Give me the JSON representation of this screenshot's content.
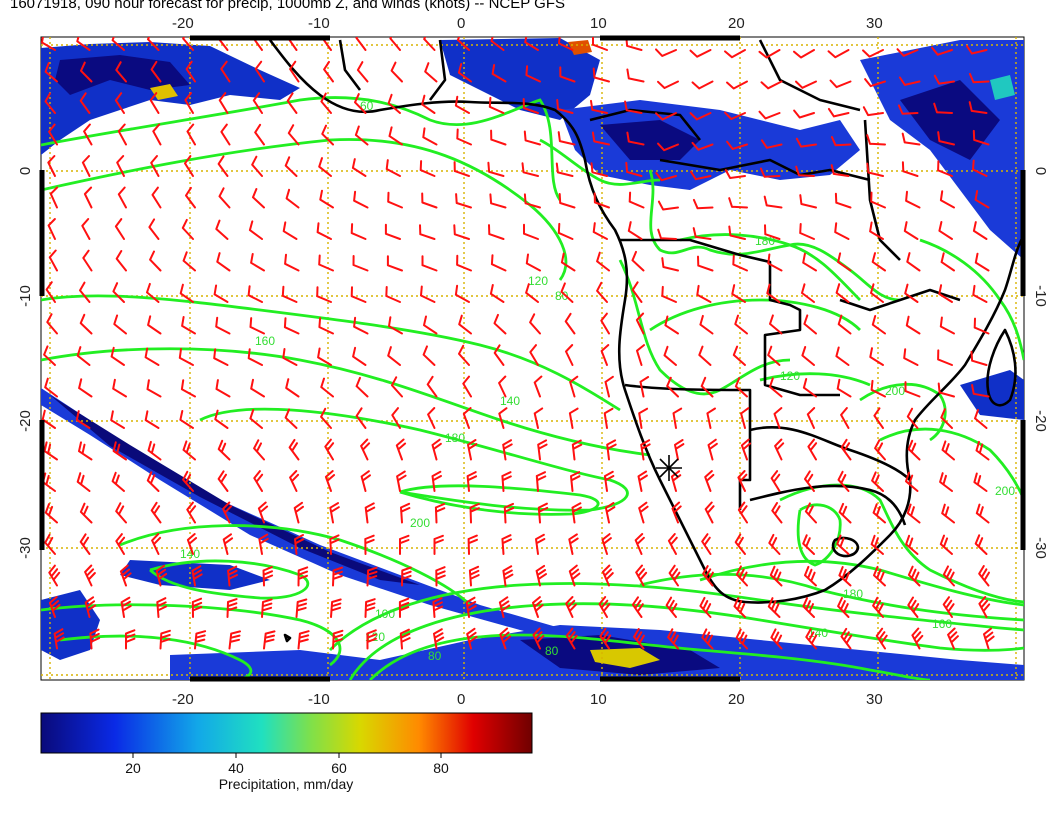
{
  "title": "16071918, 090 hour forecast for precip, 1000mb Z, and winds (knots) -- NCEP GFS",
  "map": {
    "lon_ticks": [
      "-20",
      "-10",
      "0",
      "10",
      "20",
      "30"
    ],
    "lat_ticks": [
      "0",
      "-10",
      "-20",
      "-30"
    ],
    "lon_range": [
      -32,
      39
    ],
    "lat_range": [
      -41,
      10
    ],
    "grid": "dotted",
    "colors": {
      "contour": "#22ee22",
      "wind_barb": "#ff1111",
      "coastline": "#000000",
      "gridline": "#d8b400"
    },
    "contour_labels": [
      "160",
      "140",
      "180",
      "200",
      "120",
      "180",
      "140",
      "120",
      "80",
      "100",
      "80",
      "200",
      "200",
      "180",
      "160",
      "140",
      "120",
      "80",
      "60"
    ],
    "station_marker": "asterisk-icon"
  },
  "colorbar": {
    "ticks": [
      "20",
      "40",
      "60",
      "80"
    ],
    "range": [
      0,
      100
    ],
    "label": "Precipitation, mm/day",
    "colors": [
      "#0a0a7a",
      "#0a2ae6",
      "#12a8e8",
      "#20e0c0",
      "#7fe04a",
      "#d8d800",
      "#ff8a00",
      "#e00000",
      "#700000"
    ]
  }
}
